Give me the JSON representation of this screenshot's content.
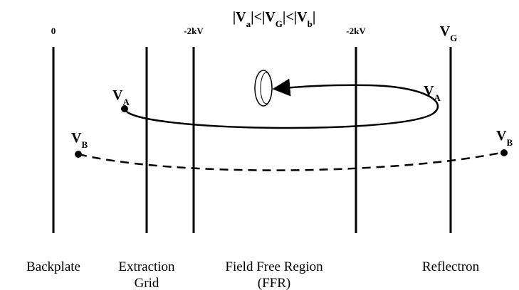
{
  "condition": [
    {
      "text": "|V"
    },
    {
      "sub": "a"
    },
    {
      "text": "|<|V"
    },
    {
      "sub": "G"
    },
    {
      "text": "|<|V"
    },
    {
      "sub": "b"
    },
    {
      "text": "|"
    }
  ],
  "potentials": {
    "backplate": "0",
    "extraction": "-2kV",
    "ffr_end": "-2kV",
    "reflectron": {
      "main": "V",
      "sub": "G"
    }
  },
  "ions": {
    "a_left": {
      "main": "V",
      "sub": "A"
    },
    "a_right": {
      "main": "V",
      "sub": "A"
    },
    "b_left": {
      "main": "V",
      "sub": "B"
    },
    "b_right": {
      "main": "V",
      "sub": "B"
    }
  },
  "regions": [
    {
      "lines": [
        "Backplate"
      ]
    },
    {
      "lines": [
        "Extraction",
        "Grid"
      ]
    },
    {
      "lines": [
        "Field Free Region",
        "(FFR)"
      ]
    },
    {
      "lines": [
        "Reflectron"
      ]
    }
  ]
}
